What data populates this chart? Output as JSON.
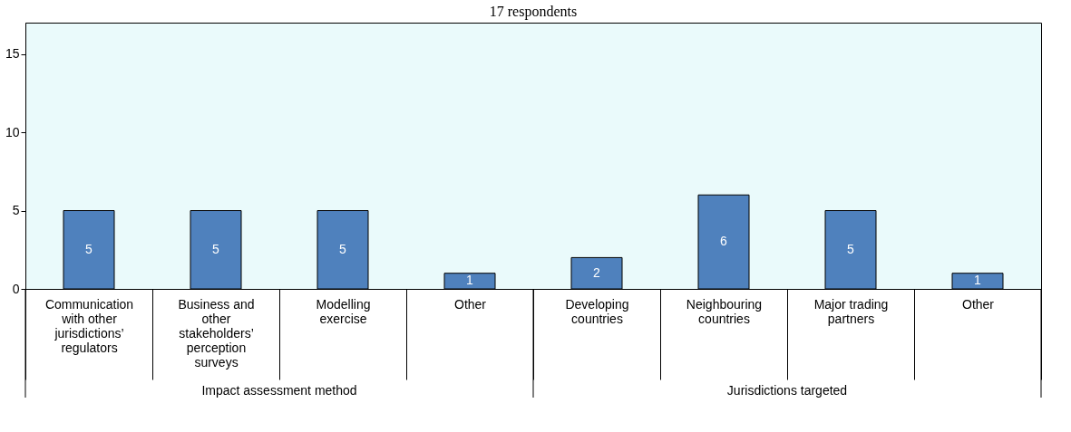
{
  "chart_data": {
    "type": "bar",
    "title": "17 respondents",
    "categories": [
      "Communication with other jurisdictions’ regulators",
      "Business and other stakeholders’ perception surveys",
      "Modelling exercise",
      "Other",
      "Developing countries",
      "Neighbouring countries",
      "Major trading partners",
      "Other"
    ],
    "values": [
      5,
      5,
      5,
      1,
      2,
      6,
      5,
      1
    ],
    "color": "#4f81bd",
    "ylim": [
      0,
      17
    ],
    "yticks": [
      0,
      5,
      10,
      15
    ],
    "grid": false,
    "data_labels": true,
    "annotations": [
      "Impact assessment method",
      "Jurisdictions targeted"
    ]
  }
}
